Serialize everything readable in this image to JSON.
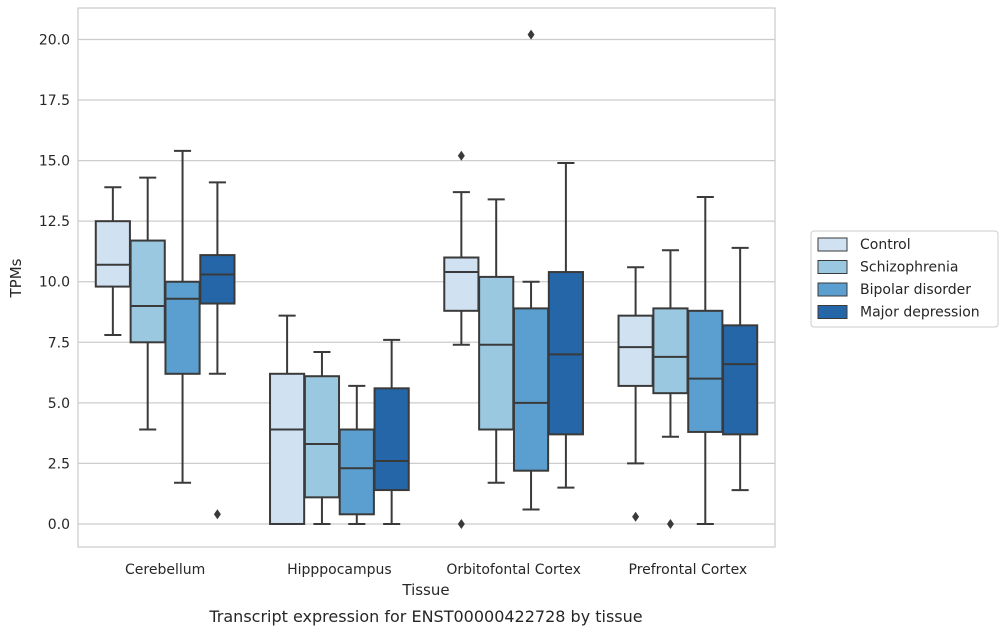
{
  "chart_data": {
    "type": "box",
    "caption": "Transcript expression for ENST00000422728 by tissue",
    "xlabel": "Tissue",
    "ylabel": "TPMs",
    "ylim": [
      -0.95,
      21.3
    ],
    "yticks": [
      0.0,
      2.5,
      5.0,
      7.5,
      10.0,
      12.5,
      15.0,
      17.5,
      20.0
    ],
    "ytick_labels": [
      "0.0",
      "2.5",
      "5.0",
      "7.5",
      "10.0",
      "12.5",
      "15.0",
      "17.5",
      "20.0"
    ],
    "grid": true,
    "legend_position": "right",
    "categories": [
      "Cerebellum",
      "Hipppocampus",
      "Orbitofontal Cortex",
      "Prefrontal Cortex"
    ],
    "series": [
      {
        "name": "Control",
        "color": "#d0e1f2",
        "boxes": [
          {
            "whisker_low": 7.8,
            "q1": 9.8,
            "median": 10.7,
            "q3": 12.5,
            "whisker_high": 13.9,
            "outliers": []
          },
          {
            "whisker_low": 0.0,
            "q1": 0.0,
            "median": 3.9,
            "q3": 6.2,
            "whisker_high": 8.6,
            "outliers": []
          },
          {
            "whisker_low": 7.4,
            "q1": 8.8,
            "median": 10.4,
            "q3": 11.0,
            "whisker_high": 13.7,
            "outliers": [
              15.2,
              0.0
            ]
          },
          {
            "whisker_low": 2.5,
            "q1": 5.7,
            "median": 7.3,
            "q3": 8.6,
            "whisker_high": 10.6,
            "outliers": [
              0.3
            ]
          }
        ]
      },
      {
        "name": "Schizophrenia",
        "color": "#9ac8e0",
        "boxes": [
          {
            "whisker_low": 3.9,
            "q1": 7.5,
            "median": 9.0,
            "q3": 11.7,
            "whisker_high": 14.3,
            "outliers": []
          },
          {
            "whisker_low": 0.0,
            "q1": 1.1,
            "median": 3.3,
            "q3": 6.1,
            "whisker_high": 7.1,
            "outliers": []
          },
          {
            "whisker_low": 1.7,
            "q1": 3.9,
            "median": 7.4,
            "q3": 10.2,
            "whisker_high": 13.4,
            "outliers": []
          },
          {
            "whisker_low": 3.6,
            "q1": 5.4,
            "median": 6.9,
            "q3": 8.9,
            "whisker_high": 11.3,
            "outliers": [
              0.0
            ]
          }
        ]
      },
      {
        "name": "Bipolar disorder",
        "color": "#5a9fcf",
        "boxes": [
          {
            "whisker_low": 1.7,
            "q1": 6.2,
            "median": 9.3,
            "q3": 10.0,
            "whisker_high": 15.4,
            "outliers": []
          },
          {
            "whisker_low": 0.0,
            "q1": 0.4,
            "median": 2.3,
            "q3": 3.9,
            "whisker_high": 5.7,
            "outliers": []
          },
          {
            "whisker_low": 0.6,
            "q1": 2.2,
            "median": 5.0,
            "q3": 8.9,
            "whisker_high": 10.0,
            "outliers": [
              20.2
            ]
          },
          {
            "whisker_low": 0.0,
            "q1": 3.8,
            "median": 6.0,
            "q3": 8.8,
            "whisker_high": 13.5,
            "outliers": []
          }
        ]
      },
      {
        "name": "Major depression",
        "color": "#2466a8",
        "boxes": [
          {
            "whisker_low": 6.2,
            "q1": 9.1,
            "median": 10.3,
            "q3": 11.1,
            "whisker_high": 14.1,
            "outliers": [
              0.4
            ]
          },
          {
            "whisker_low": 0.0,
            "q1": 1.4,
            "median": 2.6,
            "q3": 5.6,
            "whisker_high": 7.6,
            "outliers": []
          },
          {
            "whisker_low": 1.5,
            "q1": 3.7,
            "median": 7.0,
            "q3": 10.4,
            "whisker_high": 14.9,
            "outliers": []
          },
          {
            "whisker_low": 1.4,
            "q1": 3.7,
            "median": 6.6,
            "q3": 8.2,
            "whisker_high": 11.4,
            "outliers": []
          }
        ]
      }
    ]
  }
}
